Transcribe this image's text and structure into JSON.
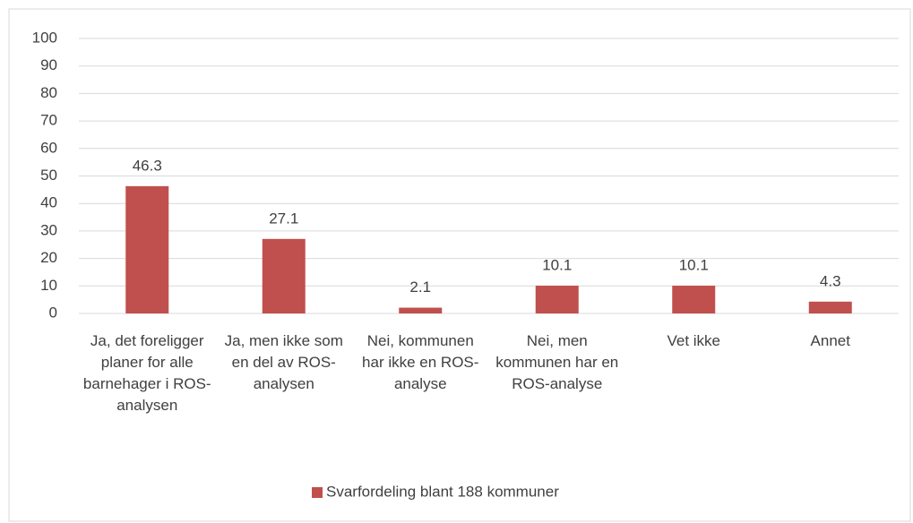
{
  "chart_data": {
    "type": "bar",
    "categories": [
      "Ja, det foreligger planer for alle barnehager i ROS-analysen",
      "Ja, men ikke som en del av ROS-analysen",
      "Nei, kommunen har ikke en ROS-analyse",
      "Nei, men kommunen har en ROS-analyse",
      "Vet ikke",
      "Annet"
    ],
    "series": [
      {
        "name": "Svarfordeling blant 188 kommuner",
        "color": "#c0504d",
        "values": [
          46.3,
          27.1,
          2.1,
          10.1,
          10.1,
          4.3
        ]
      }
    ],
    "ylim": [
      0,
      100
    ],
    "yticks": [
      0,
      10,
      20,
      30,
      40,
      50,
      60,
      70,
      80,
      90,
      100
    ],
    "grid": true,
    "legend": "bottom"
  }
}
